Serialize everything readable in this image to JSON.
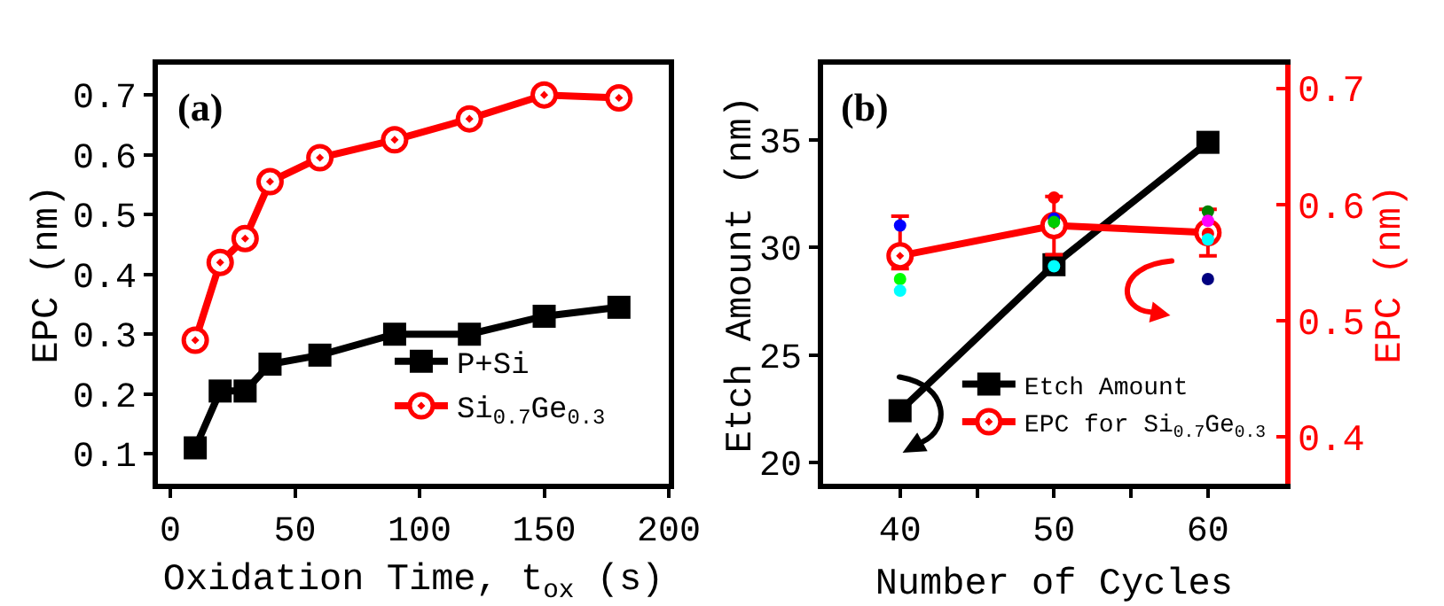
{
  "chart_data": [
    {
      "type": "line",
      "annotations": [
        "(a)"
      ],
      "xlabel": "Oxidation Time, t$_{ox}$ (s)",
      "ylabel": "EPC (nm)",
      "x": [
        10,
        20,
        30,
        40,
        60,
        90,
        120,
        150,
        180
      ],
      "xlim": [
        -5,
        200
      ],
      "xticks": [
        0,
        50,
        100,
        150,
        200
      ],
      "ylim": [
        0.05,
        0.75
      ],
      "yticks": [
        0.1,
        0.2,
        0.3,
        0.4,
        0.5,
        0.6,
        0.7
      ],
      "legend": "bottom right",
      "series": [
        {
          "name": "P+Si",
          "color": "#000000",
          "marker": "square",
          "values": [
            0.11,
            0.205,
            0.205,
            0.25,
            0.265,
            0.3,
            0.3,
            0.33,
            0.345
          ]
        },
        {
          "name": "Si$_{0.7}$Ge$_{0.3}$",
          "color": "#ff0000",
          "marker": "circle",
          "values": [
            0.29,
            0.42,
            0.46,
            0.555,
            0.595,
            0.625,
            0.66,
            0.7,
            0.695
          ]
        }
      ]
    },
    {
      "type": "line",
      "annotations": [
        "(b)"
      ],
      "xlabel": "Number of Cycles",
      "ylabel": "Etch Amount (nm)",
      "y2label": "EPC (nm)",
      "x": [
        40,
        50,
        60
      ],
      "xlim": [
        35,
        65
      ],
      "xticks": [
        40,
        {
          "value": 45,
          "label": null
        },
        50,
        {
          "value": 55,
          "label": null
        },
        60
      ],
      "ylim": [
        19,
        38.5
      ],
      "yticks": [
        20,
        25,
        30,
        35
      ],
      "y2lim": [
        0.36,
        0.72
      ],
      "y2ticks": [
        0.4,
        0.5,
        0.6,
        0.7
      ],
      "legend": "bottom right",
      "series": [
        {
          "name": "Etch Amount",
          "color": "#000000",
          "marker": "square",
          "values": [
            22.4,
            29.2,
            34.9
          ]
        },
        {
          "name": "EPC for Si$_{0.7}$Ge$_{0.3}$",
          "color": "#ff0000",
          "marker": "circle",
          "axis": "y2",
          "values": [
            0.556,
            0.582,
            0.576
          ],
          "errors": [
            [
              0.545,
              0.59
            ],
            0.025,
            0.02
          ]
        },
        {
          "type": "scatter",
          "axis": "y2",
          "marker": "circle",
          "x": [
            40,
            40,
            40,
            50,
            50,
            50,
            50,
            60,
            60,
            60,
            60,
            60
          ],
          "values": [
            0.582,
            0.536,
            0.526,
            0.606,
            0.588,
            0.585,
            0.547,
            0.594,
            0.586,
            0.575,
            0.57,
            0.536
          ],
          "colors": [
            "#0000ff",
            "#00ff00",
            "#00ffff",
            "#ff0000",
            "#0000ff",
            "#00cc00",
            "#00ffff",
            "#008000",
            "#ff00ff",
            "#ff0000",
            "#00ffff",
            "#000080"
          ]
        }
      ]
    }
  ]
}
